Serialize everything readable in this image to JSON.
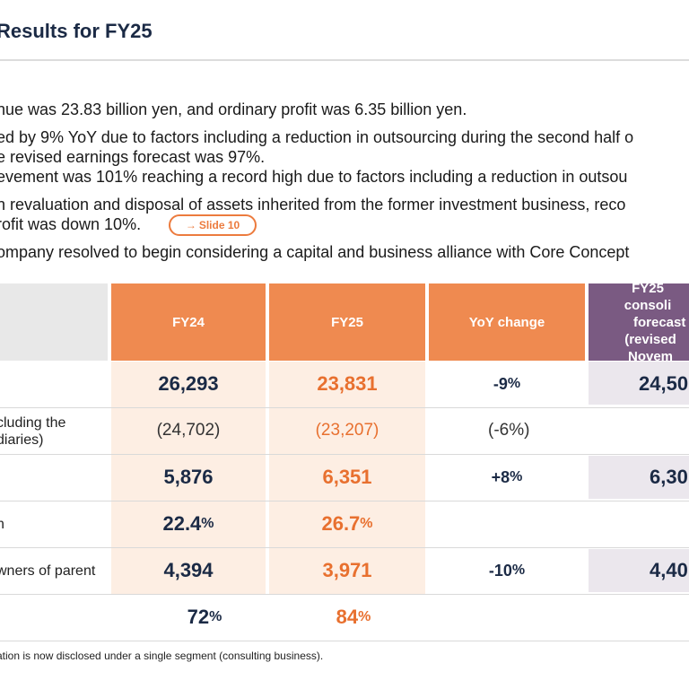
{
  "title": "Results for FY25",
  "bullets": [
    "nue was 23.83 billion yen, and ordinary profit was 6.35 billion yen.",
    "ed by 9% YoY due to factors including a reduction in outsourcing during the second half o",
    "e revised earnings forecast was 97%.",
    "evement was 101% reaching a record high due to factors including a reduction in outsou",
    "n revaluation and disposal of assets inherited from the former investment business, reco",
    "rofit was down 10%.",
    "ompany resolved to begin considering a capital and business alliance with Core Concept"
  ],
  "slide_link": {
    "arrow": "→",
    "label": "Slide 10"
  },
  "table": {
    "headers": {
      "fy24": "FY24",
      "fy25": "FY25",
      "yoy": "YoY change",
      "forecast_line1": "FY25 consoli",
      "forecast_line2": "forecast",
      "forecast_line3": "(revised Novem"
    },
    "rows": [
      {
        "label": "",
        "fy24": "26,293",
        "fy25": "23,831",
        "yoy": "-9",
        "yoy_unit": "%",
        "forecast": "24,50"
      },
      {
        "label_line1": "cluding the",
        "label_line2": "diaries)",
        "fy24": "(24,702)",
        "fy25": "(23,207)",
        "yoy": "(-6%)"
      },
      {
        "label": "",
        "fy24": "5,876",
        "fy25": "6,351",
        "yoy": "+8",
        "yoy_unit": "%",
        "forecast": "6,30"
      },
      {
        "label": "n",
        "fy24": "22.4",
        "fy24_unit": "%",
        "fy25": "26.7",
        "fy25_unit": "%"
      },
      {
        "label": "wners of parent",
        "fy24": "4,394",
        "fy25": "3,971",
        "yoy": "-10",
        "yoy_unit": "%",
        "forecast": "4,40"
      },
      {
        "label": "",
        "fy24": "72",
        "fy24_unit": "%",
        "fy25": "84",
        "fy25_unit": "%"
      }
    ]
  },
  "footnote": "ation is now disclosed under a single segment (consulting business).",
  "colors": {
    "header_orange": "#ef8a50",
    "header_purple": "#7a5a82",
    "accent_orange": "#e8702f",
    "navy": "#1b2a45"
  }
}
